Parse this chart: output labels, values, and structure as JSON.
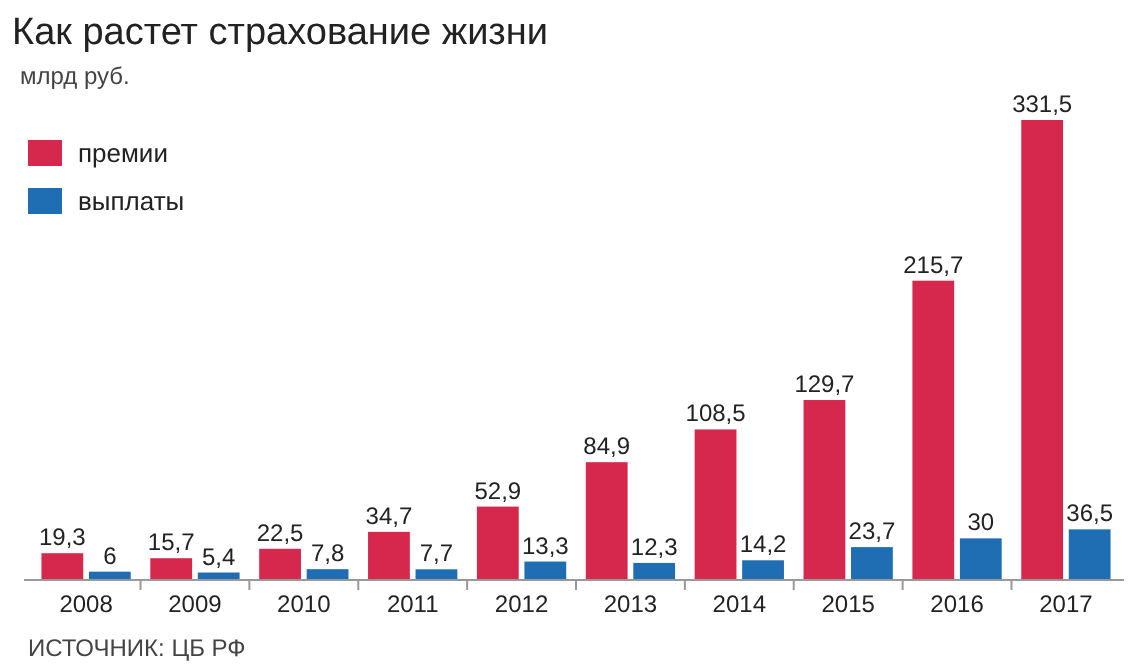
{
  "chart_data": {
    "type": "bar",
    "title": "Как растет страхование жизни",
    "subtitle": "млрд руб.",
    "categories": [
      "2008",
      "2009",
      "2010",
      "2011",
      "2012",
      "2013",
      "2014",
      "2015",
      "2016",
      "2017"
    ],
    "series": [
      {
        "name": "премии",
        "color": "#d5284c",
        "values": [
          19.3,
          15.7,
          22.5,
          34.7,
          52.9,
          84.9,
          108.5,
          129.7,
          215.7,
          331.5
        ],
        "value_labels": [
          "19,3",
          "15,7",
          "22,5",
          "34,7",
          "52,9",
          "84,9",
          "108,5",
          "129,7",
          "215,7",
          "331,5"
        ]
      },
      {
        "name": "выплаты",
        "color": "#1f6db3",
        "values": [
          6,
          5.4,
          7.8,
          7.7,
          13.3,
          12.3,
          14.2,
          23.7,
          30,
          36.5
        ],
        "value_labels": [
          "6",
          "5,4",
          "7,8",
          "7,7",
          "13,3",
          "12,3",
          "14,2",
          "23,7",
          "30",
          "36,5"
        ]
      }
    ],
    "legend": "top left",
    "annotations": [
      "ИСТОЧНИК: ЦБ РФ"
    ]
  }
}
